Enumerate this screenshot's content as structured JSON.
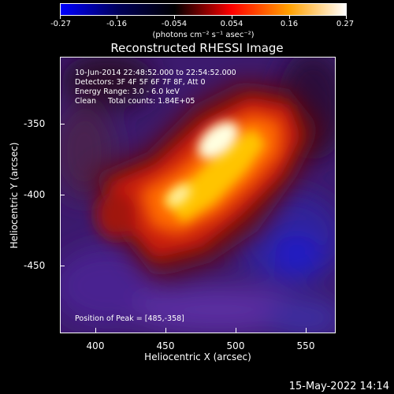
{
  "colorbar": {
    "tick_labels": [
      "-0.27",
      "-0.16",
      "-0.054",
      "0.054",
      "0.16",
      "0.27"
    ],
    "units": "(photons cm⁻² s⁻¹ asec⁻²)"
  },
  "title": "Reconstructed RHESSI Image",
  "info": {
    "line1": "10-Jun-2014 22:48:52.000 to 22:54:52.000",
    "line2": "Detectors: 3F 4F 5F 6F 7F 8F, Att 0",
    "line3": "Energy Range: 3.0 - 6.0 keV",
    "line4": "Clean     Total counts: 1.84E+05",
    "peak": "Position of Peak = [485,-358]"
  },
  "xaxis": {
    "label": "Heliocentric X (arcsec)",
    "ticks": [
      "400",
      "450",
      "500",
      "550"
    ]
  },
  "yaxis": {
    "label": "Heliocentric Y (arcsec)",
    "ticks": [
      "-350",
      "-400",
      "-450"
    ]
  },
  "timestamp": "15-May-2022 14:14",
  "colors": {
    "background": "#000000",
    "colormap": [
      "#0000ff",
      "#00005a",
      "#000000",
      "#ff0000",
      "#ffa000",
      "#ffffff"
    ]
  }
}
